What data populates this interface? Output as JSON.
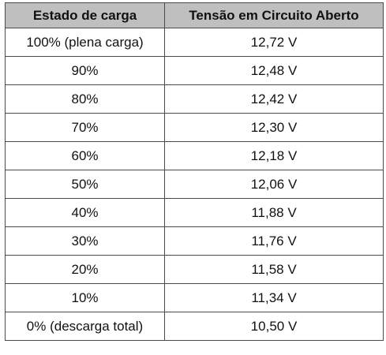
{
  "table": {
    "headers": [
      "Estado de carga",
      "Tensão em Circuito Aberto"
    ],
    "rows": [
      [
        "100% (plena carga)",
        "12,72 V"
      ],
      [
        "90%",
        "12,48 V"
      ],
      [
        "80%",
        "12,42 V"
      ],
      [
        "70%",
        "12,30 V"
      ],
      [
        "60%",
        "12,18 V"
      ],
      [
        "50%",
        "12,06 V"
      ],
      [
        "40%",
        "11,88 V"
      ],
      [
        "30%",
        "11,76 V"
      ],
      [
        "20%",
        "11,58 V"
      ],
      [
        "10%",
        "11,34 V"
      ],
      [
        "0% (descarga total)",
        "10,50 V"
      ]
    ]
  }
}
